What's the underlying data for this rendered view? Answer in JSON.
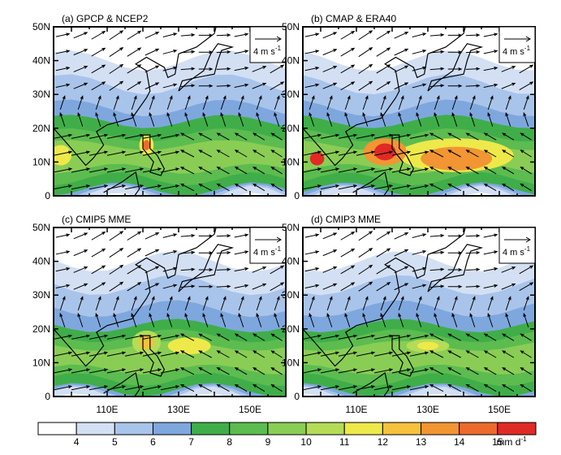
{
  "panels": [
    {
      "label": "(a)  GPCP & NCEP2"
    },
    {
      "label": "(b)  CMAP & ERA40"
    },
    {
      "label": "(c)  CMIP5 MME"
    },
    {
      "label": "(d)  CMIP3 MME"
    }
  ],
  "y_labels": [
    "0",
    "10N",
    "20N",
    "30N",
    "40N",
    "50N"
  ],
  "x_labels": [
    "110E",
    "130E",
    "150E"
  ],
  "ref_vector": {
    "text": "4 m s",
    "exp": "-1"
  },
  "colorbar": {
    "labels": [
      "4",
      "5",
      "6",
      "7",
      "8",
      "9",
      "10",
      "11",
      "12",
      "13",
      "14",
      "15"
    ],
    "unit": "mm d",
    "unit_exp": "-1",
    "colors": [
      "#ffffff",
      "#d3e0f4",
      "#a9c4ea",
      "#7ea7de",
      "#3fae49",
      "#5cbc4f",
      "#8acd55",
      "#b5dc57",
      "#eee94a",
      "#f6c13d",
      "#f29533",
      "#ed6a2c",
      "#e02a26"
    ]
  }
}
